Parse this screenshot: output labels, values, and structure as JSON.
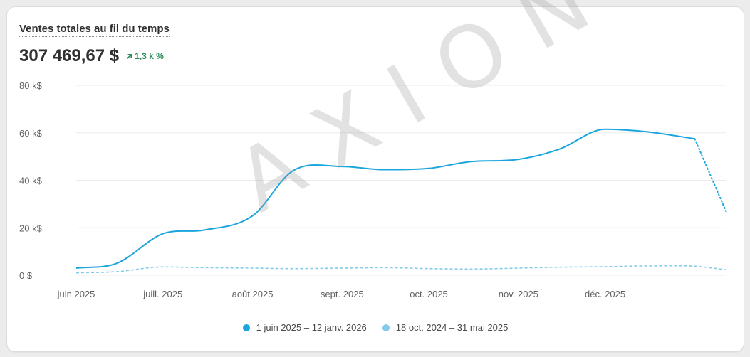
{
  "card": {
    "title": "Ventes totales au fil du temps",
    "total": "307 469,67 $",
    "delta": "1,3 k %",
    "delta_icon": "arrow-up-right-icon",
    "watermark": "AXION"
  },
  "colors": {
    "current": "#1ba5dd",
    "previous": "#84cbea",
    "grid": "#ebebeb",
    "positive": "#2a8a53"
  },
  "chart_data": {
    "type": "line",
    "title": "Ventes totales au fil du temps",
    "xlabel": "",
    "ylabel": "",
    "x_ticks": [
      "juin 2025",
      "juill. 2025",
      "août 2025",
      "sept. 2025",
      "oct. 2025",
      "nov. 2025",
      "déc. 2025"
    ],
    "y_ticks": [
      "0 $",
      "20 k$",
      "40 k$",
      "60 k$",
      "80 k$"
    ],
    "ylim": [
      0,
      80000
    ],
    "grid": true,
    "legend_position": "bottom",
    "series": [
      {
        "name": "1 juin 2025 – 12 janv. 2026",
        "style": "solid, dotted after last complete period",
        "x": [
          "2025-06-01",
          "2025-06-15",
          "2025-07-01",
          "2025-07-15",
          "2025-08-01",
          "2025-08-15",
          "2025-09-01",
          "2025-09-15",
          "2025-10-01",
          "2025-10-15",
          "2025-11-01",
          "2025-11-15",
          "2025-12-01",
          "2025-12-15",
          "2026-01-01",
          "2026-01-12"
        ],
        "values": [
          3000,
          5000,
          17500,
          19000,
          25000,
          44000,
          45800,
          44500,
          45000,
          47800,
          48800,
          53000,
          61500,
          60500,
          57500,
          26500
        ],
        "dotted_from_index": 14
      },
      {
        "name": "18 oct. 2024 – 31 mai 2025",
        "style": "dashed",
        "x": [
          "2025-06-01",
          "2025-06-15",
          "2025-07-01",
          "2025-07-15",
          "2025-08-01",
          "2025-08-15",
          "2025-09-01",
          "2025-09-15",
          "2025-10-01",
          "2025-10-15",
          "2025-11-01",
          "2025-11-15",
          "2025-12-01",
          "2025-12-15",
          "2026-01-01",
          "2026-01-12"
        ],
        "values": [
          1000,
          1500,
          3500,
          3200,
          3000,
          2800,
          3000,
          3200,
          2800,
          2600,
          3000,
          3400,
          3600,
          3900,
          3800,
          2300
        ]
      }
    ]
  }
}
